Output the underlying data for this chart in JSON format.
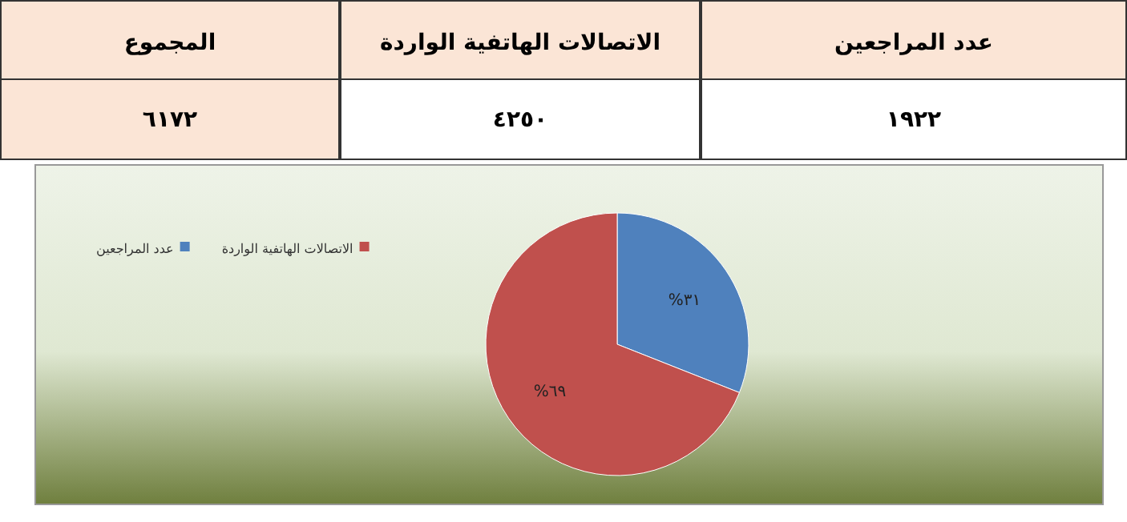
{
  "chart_data": {
    "type": "pie",
    "categories": [
      "عدد المراجعين",
      "الاتصالات الهاتفية الواردة"
    ],
    "values": [
      31,
      69
    ],
    "colors": [
      "#4f81bd",
      "#c0504d"
    ],
    "value_labels": [
      "%٣١",
      "%٦٩"
    ],
    "legend": "top left",
    "annotations": [
      "عدد المراجعين",
      "الاتصالات الهاتفية الواردة",
      "المجموع",
      "١٩٢٢",
      "٤٢٥٠",
      "٦١٧٢"
    ]
  }
}
